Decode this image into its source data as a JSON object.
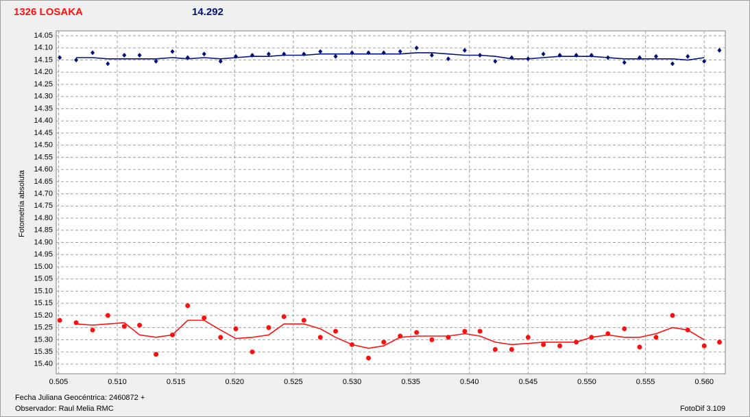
{
  "chart_data": {
    "type": "scatter",
    "title": "1326 LOSAKA",
    "subtitle": "14.292",
    "y_label": "Fotometría absoluta",
    "annotations": [
      "Fecha Juliana Geocéntrica: 2460872 +",
      "Observador: Raul Melia RMC",
      "FotoDif 3.109"
    ],
    "x": [
      0.5051,
      0.5065,
      0.5079,
      0.5092,
      0.5106,
      0.5119,
      0.5133,
      0.5147,
      0.516,
      0.5174,
      0.5188,
      0.5201,
      0.5215,
      0.5229,
      0.5242,
      0.5259,
      0.5273,
      0.5286,
      0.53,
      0.5314,
      0.5327,
      0.5341,
      0.5355,
      0.5368,
      0.5382,
      0.5396,
      0.5409,
      0.5422,
      0.5436,
      0.545,
      0.5463,
      0.5477,
      0.5491,
      0.5504,
      0.5518,
      0.5532,
      0.5545,
      0.5559,
      0.5573,
      0.5586,
      0.56,
      0.5613
    ],
    "series": [
      {
        "color": "#00107f",
        "marker": "diamond",
        "values": [
          14.14,
          14.15,
          14.12,
          14.165,
          14.13,
          14.13,
          14.155,
          14.115,
          14.14,
          14.125,
          14.155,
          14.135,
          14.13,
          14.125,
          14.125,
          14.125,
          14.115,
          14.135,
          14.12,
          14.12,
          14.12,
          14.115,
          14.1,
          14.13,
          14.145,
          14.11,
          14.13,
          14.155,
          14.14,
          14.145,
          14.125,
          14.13,
          14.13,
          14.13,
          14.14,
          14.16,
          14.14,
          14.135,
          14.165,
          14.135,
          14.155,
          14.11
        ]
      },
      {
        "color": "#00107f",
        "marker": "line",
        "values": [
          null,
          14.14,
          14.14,
          14.145,
          14.145,
          14.145,
          14.145,
          14.14,
          14.145,
          14.14,
          14.145,
          14.14,
          14.135,
          14.135,
          14.13,
          14.13,
          14.125,
          14.125,
          14.125,
          14.125,
          14.125,
          14.125,
          14.12,
          14.12,
          14.125,
          14.13,
          14.13,
          14.135,
          14.145,
          14.145,
          14.14,
          14.135,
          14.135,
          14.135,
          14.14,
          14.145,
          14.145,
          14.145,
          14.145,
          14.15,
          14.14,
          null
        ]
      },
      {
        "color": "#ff1010",
        "marker": "circle",
        "values": [
          15.22,
          15.23,
          15.26,
          15.2,
          15.245,
          15.24,
          15.36,
          15.28,
          15.16,
          15.21,
          15.29,
          15.255,
          15.35,
          15.25,
          15.205,
          15.22,
          15.29,
          15.265,
          15.32,
          15.375,
          15.31,
          15.285,
          15.27,
          15.3,
          15.29,
          15.265,
          15.265,
          15.34,
          15.34,
          15.29,
          15.32,
          15.325,
          15.31,
          15.29,
          15.275,
          15.255,
          15.33,
          15.29,
          15.2,
          15.26,
          15.325,
          15.31
        ]
      },
      {
        "color": "#ff1010",
        "marker": "line",
        "values": [
          null,
          15.235,
          15.24,
          15.235,
          15.23,
          15.28,
          15.29,
          15.28,
          15.22,
          15.22,
          15.26,
          15.295,
          15.29,
          15.28,
          15.235,
          15.235,
          15.255,
          15.29,
          15.32,
          15.335,
          15.325,
          15.29,
          15.285,
          15.285,
          15.285,
          15.275,
          15.285,
          15.31,
          15.32,
          15.315,
          15.31,
          15.31,
          15.31,
          15.29,
          15.28,
          15.29,
          15.29,
          15.275,
          15.25,
          15.26,
          15.3,
          null
        ]
      }
    ],
    "xlim": [
      0.5048,
      0.5618
    ],
    "ylim": [
      15.44,
      14.03
    ],
    "xticks": [
      0.505,
      {
        "value": 0.51,
        "label": "0.510"
      },
      0.515,
      {
        "value": 0.52,
        "label": "0.520"
      },
      0.525,
      {
        "value": 0.53,
        "label": "0.530"
      },
      0.535,
      {
        "value": 0.54,
        "label": "0.540"
      },
      0.545,
      {
        "value": 0.55,
        "label": "0.550"
      },
      0.555,
      {
        "value": 0.56,
        "label": "0.560"
      }
    ],
    "yticks": [
      14.05,
      {
        "value": 14.1,
        "label": "14.10"
      },
      14.15,
      {
        "value": 14.2,
        "label": "14.20"
      },
      14.25,
      {
        "value": 14.3,
        "label": "14.30"
      },
      14.35,
      {
        "value": 14.4,
        "label": "14.40"
      },
      14.45,
      {
        "value": 14.5,
        "label": "14.50"
      },
      14.55,
      {
        "value": 14.6,
        "label": "14.60"
      },
      14.65,
      {
        "value": 14.7,
        "label": "14.70"
      },
      14.75,
      {
        "value": 14.8,
        "label": "14.80"
      },
      14.85,
      {
        "value": 14.9,
        "label": "14.90"
      },
      14.95,
      {
        "value": 15,
        "label": "15.00"
      },
      15.05,
      {
        "value": 15.1,
        "label": "15.10"
      },
      15.15,
      {
        "value": 15.2,
        "label": "15.20"
      },
      15.25,
      {
        "value": 15.3,
        "label": "15.30"
      },
      15.35,
      {
        "value": 15.4,
        "label": "15.40"
      }
    ],
    "grid": true
  }
}
